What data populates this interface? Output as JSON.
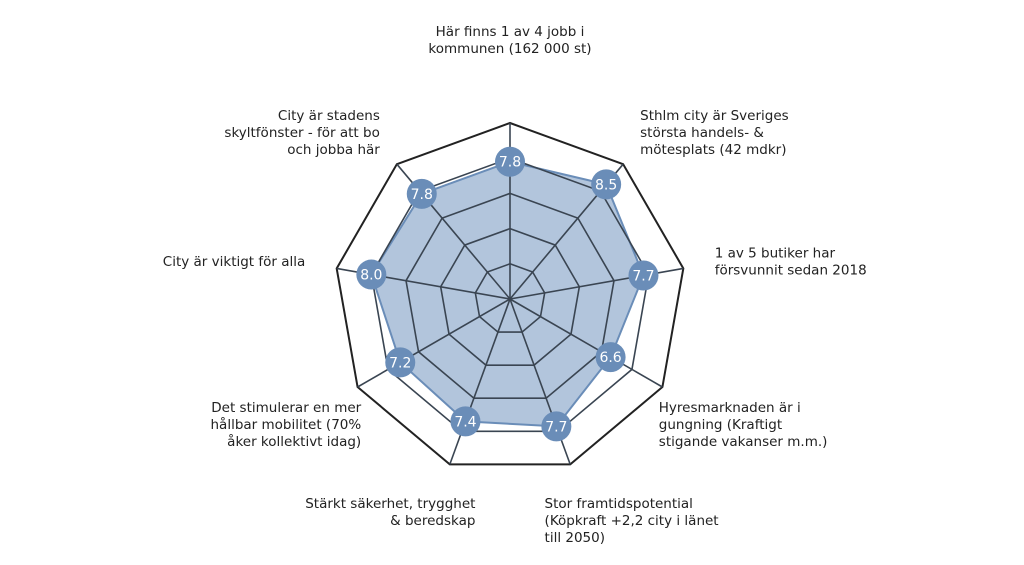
{
  "chart_data": {
    "type": "radar",
    "range": [
      0,
      10
    ],
    "rings": [
      2,
      4,
      6,
      8,
      10
    ],
    "fill_color": "#7f9ec4",
    "line_color": "#6a8db8",
    "marker_color": "#6a8db8",
    "axes": [
      {
        "label": [
          "Här finns 1 av 4 jobb i",
          "kommunen (162 000 st)"
        ],
        "value": 7.8,
        "value_label": "7.8"
      },
      {
        "label": [
          "Sthlm city är Sveriges",
          "största handels- &",
          "mötesplats (42 mdkr)"
        ],
        "value": 8.5,
        "value_label": "8.5"
      },
      {
        "label": [
          "1 av 5 butiker har",
          "försvunnit sedan 2018"
        ],
        "value": 7.7,
        "value_label": "7.7"
      },
      {
        "label": [
          "Hyresmarknaden är i",
          "gungning (Kraftigt",
          "stigande vakanser m.m.)"
        ],
        "value": 6.6,
        "value_label": "6.6"
      },
      {
        "label": [
          "Stor framtidspotential",
          "(Köpkraft +2,2 city i länet",
          "till 2050)"
        ],
        "value": 7.7,
        "value_label": "7.7"
      },
      {
        "label": [
          "Stärkt säkerhet, trygghet",
          "& beredskap"
        ],
        "value": 7.4,
        "value_label": "7.4"
      },
      {
        "label": [
          "Det stimulerar en mer",
          "hållbar mobilitet (70%",
          "åker kollektivt idag)"
        ],
        "value": 7.2,
        "value_label": "7.2"
      },
      {
        "label": [
          "City är viktigt för alla"
        ],
        "value": 8.0,
        "value_label": "8.0"
      },
      {
        "label": [
          "City är stadens",
          "skyltfönster - för att bo",
          "och jobba här"
        ],
        "value": 7.8,
        "value_label": "7.8"
      }
    ]
  }
}
